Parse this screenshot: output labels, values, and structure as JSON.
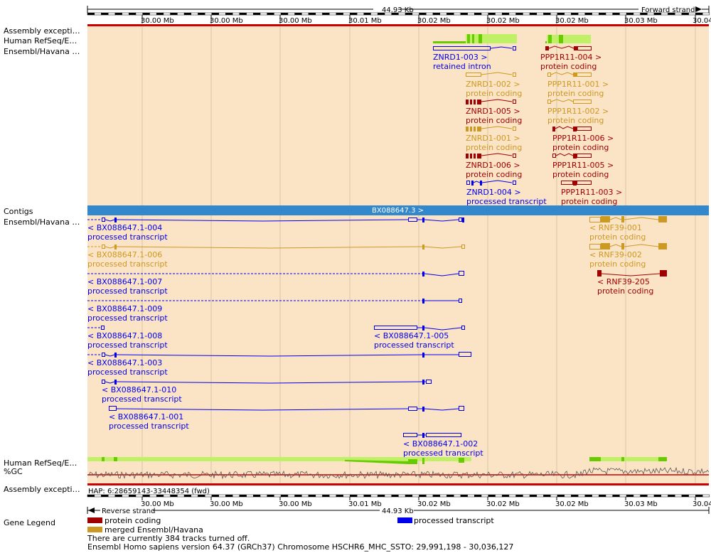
{
  "colors": {
    "protein_coding": "#a00000",
    "merged": "#cc9922",
    "processed": "#0000ee",
    "retained": "#0000ee",
    "refseq": "#bff066",
    "refseq_dark": "#66cc00",
    "contig": "#3388cc",
    "panel_bg": "#fbe3c6",
    "red_line": "#cc0000"
  },
  "ruler": {
    "span_label": "44.93 Kb",
    "forward_strand": "Forward strand",
    "reverse_strand": "Reverse strand",
    "ticks": [
      "30.00 Mb",
      "30.00 Mb",
      "30.00 Mb",
      "30.01 Mb",
      "30.02 Mb",
      "30.02 Mb",
      "30.02 Mb",
      "30.03 Mb",
      "30.04"
    ]
  },
  "track_labels": {
    "assembly_exceptions_top": "Assembly excepti…",
    "human_refseq_top": "Human RefSeq/E…",
    "ensembl_havana_top": "Ensembl/Havana …",
    "contigs": "Contigs",
    "ensembl_havana_bottom": "Ensembl/Havana …",
    "human_refseq_bottom": "Human RefSeq/E…",
    "gc": "%GC",
    "assembly_exceptions_bottom": "Assembly excepti…"
  },
  "contig_label": "BX088647.3 >",
  "hap_label": "HAP: 6:28659143-33448354 (fwd)",
  "forward_transcripts": [
    {
      "id": "ZNRD1-003 >",
      "biotype": "retained intron",
      "color": "retained"
    },
    {
      "id": "PPP1R11-004 >",
      "biotype": "protein coding",
      "color": "protein_coding"
    },
    {
      "id": "ZNRD1-002 >",
      "biotype": "protein coding",
      "color": "merged"
    },
    {
      "id": "PPP1R11-001 >",
      "biotype": "protein coding",
      "color": "merged"
    },
    {
      "id": "ZNRD1-005 >",
      "biotype": "protein coding",
      "color": "protein_coding"
    },
    {
      "id": "PPP1R11-002 >",
      "biotype": "protein coding",
      "color": "merged"
    },
    {
      "id": "ZNRD1-001 >",
      "biotype": "protein coding",
      "color": "merged"
    },
    {
      "id": "PPP1R11-006 >",
      "biotype": "protein coding",
      "color": "protein_coding"
    },
    {
      "id": "ZNRD1-006 >",
      "biotype": "protein coding",
      "color": "protein_coding"
    },
    {
      "id": "PPP1R11-005 >",
      "biotype": "protein coding",
      "color": "protein_coding"
    },
    {
      "id": "ZNRD1-004 >",
      "biotype": "processed transcript",
      "color": "processed"
    },
    {
      "id": "PPP1R11-003 >",
      "biotype": "protein coding",
      "color": "protein_coding"
    }
  ],
  "reverse_transcripts": [
    {
      "id": "< BX088647.1-004",
      "biotype": "processed transcript",
      "color": "processed"
    },
    {
      "id": "< RNF39-001",
      "biotype": "protein coding",
      "color": "merged"
    },
    {
      "id": "< BX088647.1-006",
      "biotype": "processed transcript",
      "color": "merged"
    },
    {
      "id": "< RNF39-002",
      "biotype": "protein coding",
      "color": "merged"
    },
    {
      "id": "< BX088647.1-007",
      "biotype": "processed transcript",
      "color": "processed"
    },
    {
      "id": "< RNF39-205",
      "biotype": "protein coding",
      "color": "protein_coding"
    },
    {
      "id": "< BX088647.1-009",
      "biotype": "processed transcript",
      "color": "processed"
    },
    {
      "id": "< BX088647.1-008",
      "biotype": "processed transcript",
      "color": "processed"
    },
    {
      "id": "< BX088647.1-005",
      "biotype": "processed transcript",
      "color": "processed"
    },
    {
      "id": "< BX088647.1-003",
      "biotype": "processed transcript",
      "color": "processed"
    },
    {
      "id": "< BX088647.1-010",
      "biotype": "processed transcript",
      "color": "processed"
    },
    {
      "id": "< BX088647.1-001",
      "biotype": "processed transcript",
      "color": "processed"
    },
    {
      "id": "< BX088647.1-002",
      "biotype": "processed transcript",
      "color": "processed"
    }
  ],
  "legend": {
    "title": "Gene Legend",
    "items": [
      {
        "label": "protein coding",
        "color": "protein_coding"
      },
      {
        "label": "processed transcript",
        "color": "processed"
      },
      {
        "label": "merged Ensembl/Havana",
        "color": "merged"
      }
    ]
  },
  "footer": {
    "tracks_off": "There are currently 384 tracks turned off.",
    "version": "Ensembl Homo sapiens version 64.37 (GRCh37) Chromosome HSCHR6_MHC_SSTO: 29,991,198 - 30,036,127"
  }
}
